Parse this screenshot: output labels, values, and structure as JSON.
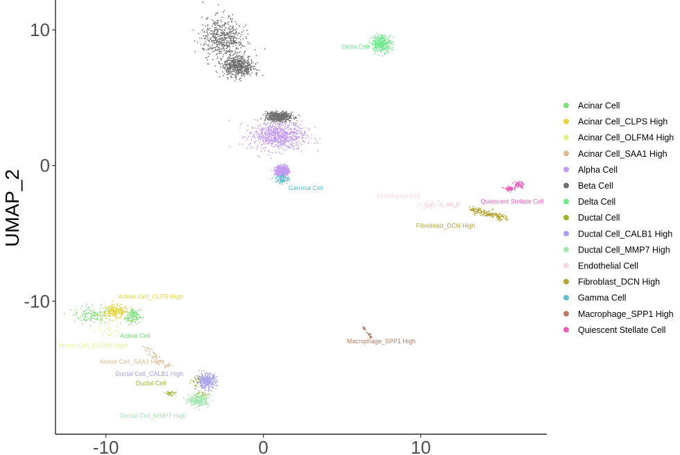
{
  "chart_data": {
    "type": "scatter",
    "title": "",
    "xlabel": "",
    "ylabel": "UMAP_2",
    "xlim": [
      -13.2,
      18
    ],
    "ylim": [
      -19.8,
      12.2
    ],
    "xticks": [
      -10,
      0,
      10
    ],
    "yticks": [
      -10,
      0,
      10
    ],
    "xtick_labels": [
      "-10",
      "0",
      "10"
    ],
    "ytick_labels": [
      "-10",
      "0",
      "10"
    ],
    "grid": false,
    "legend_position": "right",
    "series": [
      {
        "name": "Acinar Cell",
        "color": "#7CE07C",
        "n": 260,
        "clusters": [
          {
            "cx": -10.8,
            "cy": -11.0,
            "sx": 0.9,
            "sy": 0.45
          },
          {
            "cx": -8.3,
            "cy": -11.1,
            "sx": 0.35,
            "sy": 0.4
          }
        ]
      },
      {
        "name": "Acinar Cell_CLPS High",
        "color": "#E8D43C",
        "n": 200,
        "clusters": [
          {
            "cx": -9.4,
            "cy": -10.8,
            "sx": 0.6,
            "sy": 0.35
          }
        ]
      },
      {
        "name": "Acinar Cell_OLFM4 High",
        "color": "#E6EE8C",
        "n": 25,
        "clusters": [
          {
            "cx": -9.8,
            "cy": -12.2,
            "sx": 0.6,
            "sy": 0.3
          }
        ]
      },
      {
        "name": "Acinar Cell_SAA1 High",
        "color": "#DDB892",
        "n": 60,
        "path": [
          [
            -7.4,
            -13.4
          ],
          [
            -6.8,
            -14.3
          ],
          [
            -6.0,
            -14.8
          ]
        ],
        "spread": 0.15
      },
      {
        "name": "Alpha Cell",
        "color": "#C49BF2",
        "n": 1500,
        "clusters": [
          {
            "cx": 0.9,
            "cy": 2.2,
            "sx": 1.3,
            "sy": 0.75
          },
          {
            "cx": 1.2,
            "cy": -0.4,
            "sx": 0.25,
            "sy": 0.25
          }
        ]
      },
      {
        "name": "Beta Cell",
        "color": "#707070",
        "n": 1600,
        "clusters": [
          {
            "cx": -2.6,
            "cy": 9.3,
            "sx": 0.9,
            "sy": 1.1
          },
          {
            "cx": -1.6,
            "cy": 7.3,
            "sx": 0.7,
            "sy": 0.55
          },
          {
            "cx": 1.0,
            "cy": 3.6,
            "sx": 0.6,
            "sy": 0.25
          }
        ]
      },
      {
        "name": "Delta Cell",
        "color": "#6EEA8A",
        "n": 320,
        "clusters": [
          {
            "cx": 7.5,
            "cy": 9.0,
            "sx": 0.45,
            "sy": 0.45
          }
        ]
      },
      {
        "name": "Ductal Cell",
        "color": "#9CB42C",
        "n": 90,
        "clusters": [
          {
            "cx": -5.9,
            "cy": -16.8,
            "sx": 0.25,
            "sy": 0.15
          },
          {
            "cx": -4.2,
            "cy": -15.8,
            "sx": 0.3,
            "sy": 0.3
          },
          {
            "cx": -4.0,
            "cy": -16.9,
            "sx": 0.35,
            "sy": 0.2
          }
        ]
      },
      {
        "name": "Ductal Cell_CALB1 High",
        "color": "#A7A2EC",
        "n": 300,
        "clusters": [
          {
            "cx": -3.6,
            "cy": -15.9,
            "sx": 0.45,
            "sy": 0.4
          }
        ]
      },
      {
        "name": "Ductal Cell_MMP7 High",
        "color": "#A6E6B2",
        "n": 280,
        "clusters": [
          {
            "cx": -4.1,
            "cy": -17.3,
            "sx": 0.45,
            "sy": 0.3
          }
        ]
      },
      {
        "name": "Endothelial Cell",
        "color": "#F6D8E2",
        "n": 110,
        "clusters": [
          {
            "cx": 10.6,
            "cy": -2.9,
            "sx": 0.55,
            "sy": 0.2
          },
          {
            "cx": 12.0,
            "cy": -2.9,
            "sx": 0.4,
            "sy": 0.12
          }
        ]
      },
      {
        "name": "Fibroblast_DCN High",
        "color": "#B4A534",
        "n": 200,
        "path": [
          [
            13.2,
            -3.2
          ],
          [
            14.4,
            -3.6
          ],
          [
            15.4,
            -3.9
          ]
        ],
        "spread": 0.18
      },
      {
        "name": "Gamma Cell",
        "color": "#5EBECC",
        "n": 80,
        "clusters": [
          {
            "cx": 1.2,
            "cy": -1.0,
            "sx": 0.3,
            "sy": 0.25
          }
        ]
      },
      {
        "name": "Macrophage_SPP1 High",
        "color": "#B87A62",
        "n": 30,
        "path": [
          [
            6.3,
            -11.8
          ],
          [
            6.7,
            -12.4
          ],
          [
            6.9,
            -12.8
          ]
        ],
        "spread": 0.05
      },
      {
        "name": "Quiescent Stellate Cell",
        "color": "#EE5CB8",
        "n": 120,
        "clusters": [
          {
            "cx": 16.2,
            "cy": -1.4,
            "sx": 0.22,
            "sy": 0.22
          },
          {
            "cx": 15.6,
            "cy": -1.7,
            "sx": 0.2,
            "sy": 0.12
          }
        ]
      }
    ],
    "annotations": [
      {
        "text": "Delta Cell",
        "x": 6.7,
        "y": 8.6,
        "color": "#6EEA8A",
        "anchor": "end"
      },
      {
        "text": "Gamma Cell",
        "x": 1.6,
        "y": -1.8,
        "color": "#5EBECC",
        "anchor": "start"
      },
      {
        "text": "Endothelial Cell",
        "x": 7.2,
        "y": -2.4,
        "color": "#F6D8E2",
        "anchor": "start"
      },
      {
        "text": "Quiescent Stellate Cell",
        "x": 13.8,
        "y": -2.8,
        "color": "#EE5CB8",
        "anchor": "start"
      },
      {
        "text": "Fibroblast_DCN High",
        "x": 9.7,
        "y": -4.6,
        "color": "#B4A534",
        "anchor": "start"
      },
      {
        "text": "Acinar Cell_CLPS High",
        "x": -9.2,
        "y": -9.8,
        "color": "#E8D43C",
        "anchor": "start"
      },
      {
        "text": "Acinar Cell",
        "x": -9.1,
        "y": -12.7,
        "color": "#7CE07C",
        "anchor": "start"
      },
      {
        "text": "Acinar Cell_OLFM4 High",
        "x": -13.0,
        "y": -13.4,
        "color": "#E6EE8C",
        "anchor": "start"
      },
      {
        "text": "Macrophage_SPP1 High",
        "x": 5.3,
        "y": -13.1,
        "color": "#B87A62",
        "anchor": "start"
      },
      {
        "text": "Acinar Cell_SAA1 High",
        "x": -10.4,
        "y": -14.6,
        "color": "#DDB892",
        "anchor": "start"
      },
      {
        "text": "Ductal Cell_CALB1 High",
        "x": -9.4,
        "y": -15.5,
        "color": "#A7A2EC",
        "anchor": "start"
      },
      {
        "text": "Ductal Cell",
        "x": -8.1,
        "y": -16.2,
        "color": "#9CB42C",
        "anchor": "start"
      },
      {
        "text": "Ductal Cell_MMP7 High",
        "x": -9.1,
        "y": -18.6,
        "color": "#A6E6B2",
        "anchor": "start"
      }
    ]
  }
}
